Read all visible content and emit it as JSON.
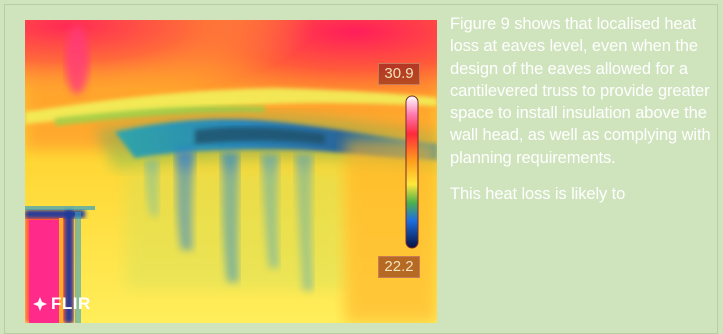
{
  "thermal_image": {
    "scale_max": "30.9",
    "scale_min": "22.2",
    "brand": "FLIR",
    "colors": {
      "hot": "#ffffff",
      "warm_red": "#ff2a3a",
      "orange": "#ff8a1c",
      "yellow": "#ffe23a",
      "green": "#4fb24a",
      "blue": "#1d6fe0",
      "dark_blue": "#0b1a6a"
    }
  },
  "caption": {
    "paragraph_1": "Figure 9 shows that localised heat loss at eaves level, even when the design of the eaves allowed for a cantilevered truss to provide greater space to install insulation above the wall head, as well as complying with planning requirements.",
    "paragraph_2": "This heat loss is likely to"
  },
  "colors": {
    "page_background": "#cfe3bd",
    "caption_text": "#ffffff"
  }
}
